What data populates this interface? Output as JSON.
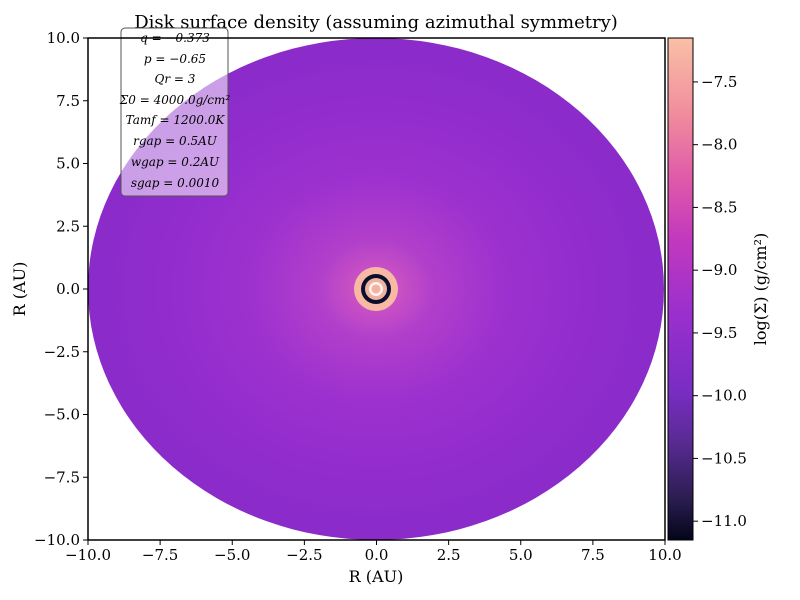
{
  "chart_data": {
    "type": "heatmap",
    "title": "Disk surface density (assuming azimuthal symmetry)",
    "xlabel": "R (AU)",
    "ylabel": "R (AU)",
    "xlim": [
      -10,
      10
    ],
    "ylim": [
      -10,
      10
    ],
    "x_ticks": [
      "−10.0",
      "−7.5",
      "−5.0",
      "−2.5",
      "0.0",
      "2.5",
      "5.0",
      "7.5",
      "10.0"
    ],
    "y_ticks": [
      "−10.0",
      "−7.5",
      "−5.0",
      "−2.5",
      "0.0",
      "2.5",
      "5.0",
      "7.5",
      "10.0"
    ],
    "colorbar": {
      "label": "log(Σ) (g/cm²)",
      "range": [
        -11.15,
        -7.15
      ],
      "ticks": [
        "−7.5",
        "−8.0",
        "−8.5",
        "−9.0",
        "−9.5",
        "−10.0",
        "−10.5",
        "−11.0"
      ],
      "colormap": [
        "#03051a",
        "#2c1e50",
        "#5b2b96",
        "#7a2cc4",
        "#9a2ece",
        "#c238bd",
        "#e05aa8",
        "#f08c9c",
        "#f7b6a1",
        "#faebdd"
      ]
    },
    "parameters": [
      "q = −0.373",
      "p = −0.65",
      "Qr = 3",
      "Σ0 = 4000.0g/cm²",
      "Tamf = 1200.0K",
      "rgap = 0.5AU",
      "wgap = 0.2AU",
      "sgap = 0.0010"
    ],
    "disk": {
      "outer_radius": 10,
      "gap_center": 0.5,
      "gap_width": 0.2,
      "inner_edge_log_sigma": -7.2,
      "outer_edge_log_sigma": -9.5,
      "gap_log_sigma": -11.1
    }
  }
}
